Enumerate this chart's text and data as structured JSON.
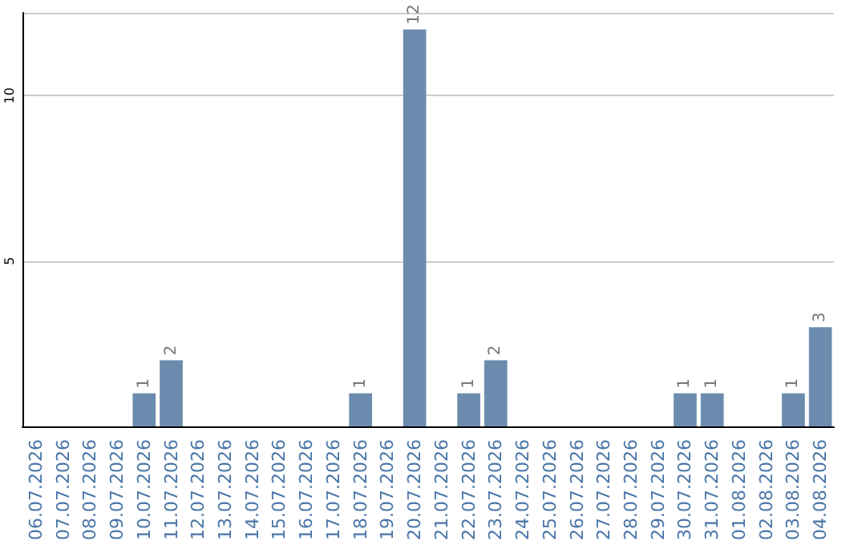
{
  "chart_data": {
    "type": "bar",
    "categories": [
      "06.07.2026",
      "07.07.2026",
      "08.07.2026",
      "09.07.2026",
      "10.07.2026",
      "11.07.2026",
      "12.07.2026",
      "13.07.2026",
      "14.07.2026",
      "15.07.2026",
      "16.07.2026",
      "17.07.2026",
      "18.07.2026",
      "19.07.2026",
      "20.07.2026",
      "21.07.2026",
      "22.07.2026",
      "23.07.2026",
      "24.07.2026",
      "25.07.2026",
      "26.07.2026",
      "27.07.2026",
      "28.07.2026",
      "29.07.2026",
      "30.07.2026",
      "31.07.2026",
      "01.08.2026",
      "02.08.2026",
      "03.08.2026",
      "04.08.2026"
    ],
    "values": [
      0,
      0,
      0,
      0,
      1,
      2,
      0,
      0,
      0,
      0,
      0,
      0,
      1,
      0,
      12,
      0,
      1,
      2,
      0,
      0,
      0,
      0,
      0,
      0,
      1,
      1,
      0,
      0,
      1,
      3
    ],
    "value_labels": [
      null,
      null,
      null,
      null,
      "1",
      "2",
      null,
      null,
      null,
      null,
      null,
      null,
      "1",
      null,
      "12",
      null,
      "1",
      "2",
      null,
      null,
      null,
      null,
      null,
      null,
      "1",
      "1",
      null,
      null,
      "1",
      "3"
    ],
    "color": "#6b8cae",
    "ylim": [
      0,
      12.5
    ],
    "yticks": [
      5,
      10
    ],
    "grid": "y"
  }
}
